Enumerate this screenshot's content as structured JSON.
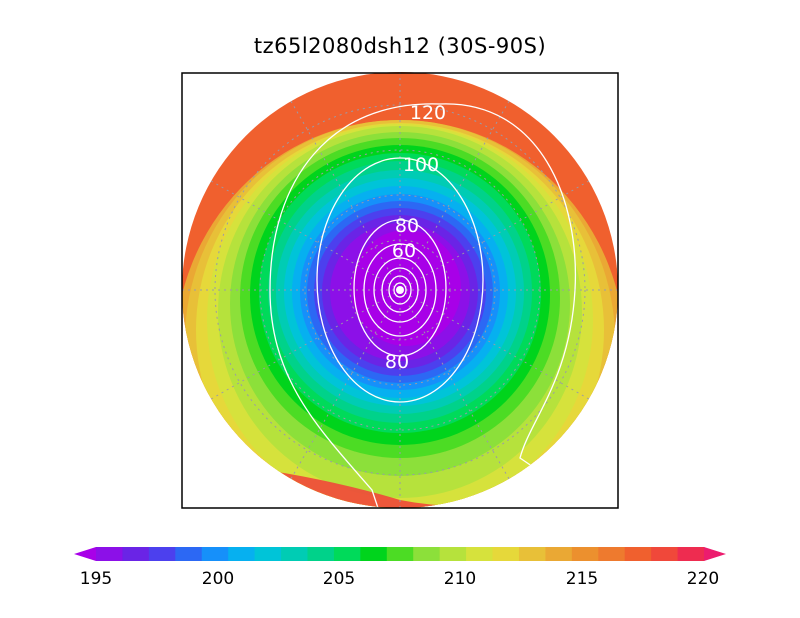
{
  "title": "tz65l2080dsh12 (30S-90S)",
  "colorbar": {
    "labels": [
      "195",
      "200",
      "205",
      "210",
      "215",
      "220"
    ],
    "colors": [
      "#a800e8",
      "#8c10e8",
      "#6a24e6",
      "#4c40ee",
      "#2c68f4",
      "#1690fa",
      "#06b0f0",
      "#00c4d8",
      "#00ccb4",
      "#00d28a",
      "#00da5a",
      "#00d41c",
      "#4cdc24",
      "#8ce03a",
      "#b6e23c",
      "#d6e23c",
      "#e6d83a",
      "#e8c038",
      "#eaa834",
      "#ec902e",
      "#ee7a2e",
      "#f0602e",
      "#f0483a",
      "#ee2c50",
      "#ec1c6e"
    ]
  },
  "contour_labels": [
    "120",
    "100",
    "80",
    "60",
    "80"
  ],
  "colors": {
    "frame": "#000000",
    "contour": "#ffffff",
    "grid": "#9a9aa8"
  }
}
